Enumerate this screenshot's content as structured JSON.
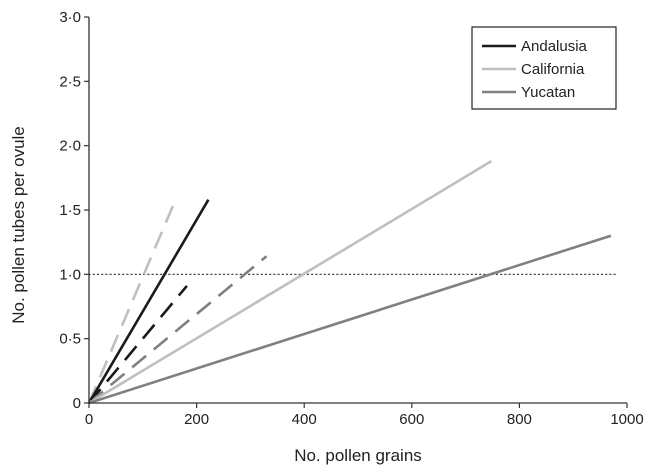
{
  "chart_data": {
    "type": "line",
    "title": "",
    "xlabel": "No. pollen grains",
    "ylabel": "No. pollen tubes per ovule",
    "xlim": [
      0,
      1000
    ],
    "ylim": [
      0,
      3.0
    ],
    "x_ticks": [
      0,
      200,
      400,
      600,
      800,
      1000
    ],
    "x_tick_labels": [
      "0",
      "200",
      "400",
      "600",
      "800",
      "1000"
    ],
    "y_ticks": [
      0,
      0.5,
      1.0,
      1.5,
      2.0,
      2.5,
      3.0
    ],
    "y_tick_labels": [
      "0",
      "0·5",
      "1·0",
      "1·5",
      "2·0",
      "2·5",
      "3·0"
    ],
    "grid": false,
    "legend_position": "top-right",
    "reference_line": {
      "y": 1.0,
      "style": "dotted",
      "color": "#333333"
    },
    "series": [
      {
        "name": "Andalusia",
        "color": "#1a1a1a",
        "style": "solid",
        "points": [
          [
            0,
            0
          ],
          [
            222,
            1.58
          ]
        ]
      },
      {
        "name": "California",
        "color": "#bfbfbf",
        "style": "solid",
        "points": [
          [
            0,
            0
          ],
          [
            748,
            1.88
          ]
        ]
      },
      {
        "name": "Yucatan",
        "color": "#808080",
        "style": "solid",
        "points": [
          [
            0,
            0
          ],
          [
            970,
            1.3
          ]
        ]
      }
    ],
    "extra_lines": [
      {
        "color": "#1a1a1a",
        "style": "dashed",
        "points": [
          [
            0,
            0
          ],
          [
            182,
            0.91
          ]
        ]
      },
      {
        "color": "#bfbfbf",
        "style": "dashed",
        "points": [
          [
            0,
            0
          ],
          [
            163,
            1.6
          ]
        ]
      },
      {
        "color": "#808080",
        "style": "dashed",
        "points": [
          [
            0,
            0
          ],
          [
            330,
            1.14
          ]
        ]
      }
    ]
  }
}
